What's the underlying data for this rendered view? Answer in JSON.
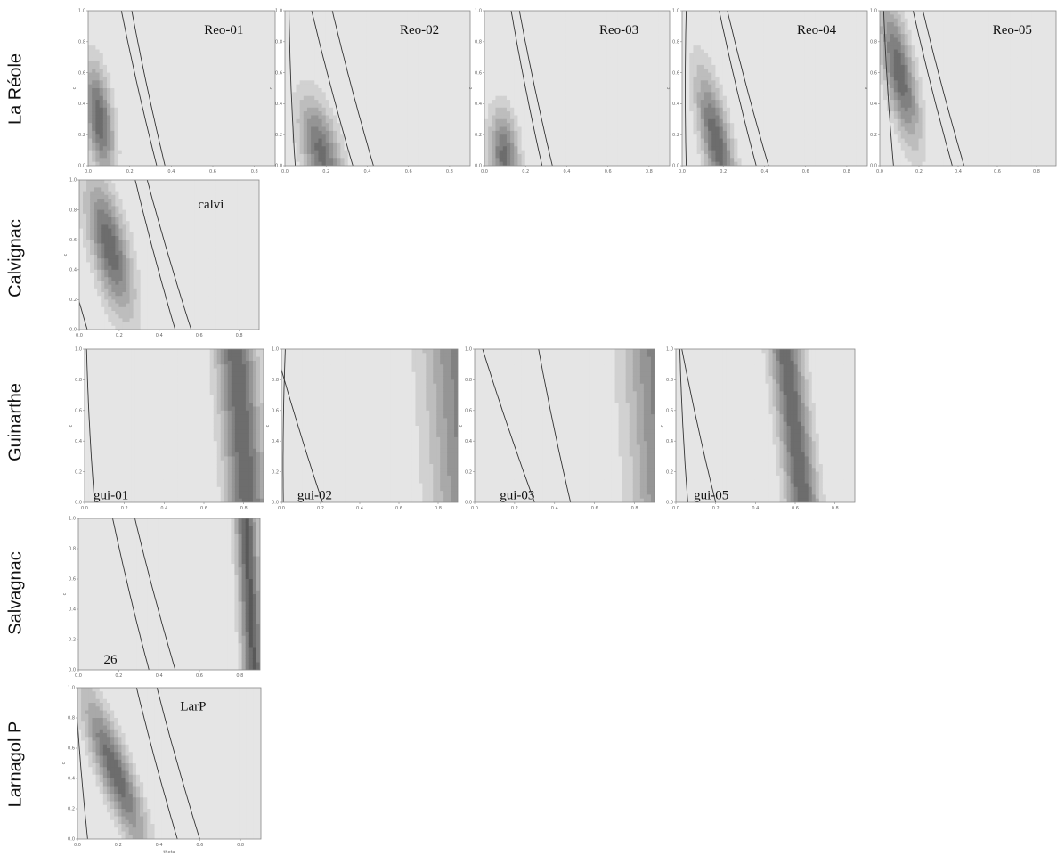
{
  "chart_data": {
    "type": "heatmap",
    "description_free": true,
    "xticks": [
      "0.0",
      "0.2",
      "0.4",
      "0.6",
      "0.8"
    ],
    "yticks": [
      "0.0",
      "0.2",
      "0.4",
      "0.6",
      "0.8",
      "1.0"
    ],
    "ylabel": "c",
    "xlabel_bottom": "theta",
    "x_range": [
      0,
      0.9
    ],
    "y_range": [
      0,
      1
    ],
    "rows": [
      {
        "label": "La Réole",
        "panels": [
          {
            "label": "Reo-01",
            "dark": {
              "x0": 0.08,
              "slope": -0.09,
              "w": 0.065,
              "yc": 0.3,
              "h": 0.35,
              "k": 0.85
            },
            "contours": [
              {
                "x0": 0.33,
                "slope": -0.19
              },
              {
                "x0": 0.37,
                "slope": -0.18
              }
            ]
          },
          {
            "label": "Reo-02",
            "dark": {
              "x0": 0.19,
              "slope": -0.16,
              "w": 0.09,
              "yc": 0.08,
              "h": 0.35,
              "k": 0.8
            },
            "contours": [
              {
                "x0": 0.05,
                "slope": -0.05
              },
              {
                "x0": 0.33,
                "slope": -0.22
              },
              {
                "x0": 0.43,
                "slope": -0.22
              }
            ]
          },
          {
            "label": "Reo-03",
            "dark": {
              "x0": 0.1,
              "slope": -0.05,
              "w": 0.07,
              "yc": 0.05,
              "h": 0.3,
              "k": 0.8
            },
            "contours": [
              {
                "x0": 0.28,
                "slope": -0.17
              },
              {
                "x0": 0.33,
                "slope": -0.18
              }
            ]
          },
          {
            "label": "Reo-04",
            "dark": {
              "x0": 0.19,
              "slope": -0.15,
              "w": 0.07,
              "yc": 0.15,
              "h": 0.45,
              "k": 0.85
            },
            "contours": [
              {
                "x0": 0.02,
                "slope": -0.02
              },
              {
                "x0": 0.36,
                "slope": -0.2
              },
              {
                "x0": 0.42,
                "slope": -0.22
              }
            ]
          },
          {
            "label": "Reo-05",
            "dark": {
              "x0": 0.19,
              "slope": -0.15,
              "w": 0.075,
              "yc": 0.6,
              "h": 0.45,
              "k": 0.85
            },
            "contours": [
              {
                "x0": 0.07,
                "slope": -0.07
              },
              {
                "x0": 0.37,
                "slope": -0.22
              },
              {
                "x0": 0.43,
                "slope": -0.23
              }
            ]
          }
        ]
      },
      {
        "label": "Calvignac",
        "panels": [
          {
            "label": "calvi",
            "dark": {
              "x0": 0.24,
              "slope": -0.16,
              "w": 0.09,
              "yc": 0.55,
              "h": 0.45,
              "k": 0.85
            },
            "contours": [
              {
                "x0": 0.04,
                "slope": -0.22
              },
              {
                "x0": 0.48,
                "slope": -0.22
              },
              {
                "x0": 0.56,
                "slope": -0.24
              }
            ]
          }
        ]
      },
      {
        "label": "Guinarthe",
        "panels": [
          {
            "label": "gui-01",
            "dark": {
              "x0": 0.82,
              "slope": -0.06,
              "w": 0.1,
              "yc": 0.5,
              "h": 9,
              "k": 0.85
            },
            "contours": [
              {
                "x0": 0.05,
                "slope": -0.06
              }
            ]
          },
          {
            "label": "gui-02",
            "dark": {
              "x0": 0.98,
              "slope": -0.05,
              "w": 0.2,
              "yc": 0.5,
              "h": 9,
              "k": 0.7
            },
            "contours": [
              {
                "x0": 0.21,
                "slope": -0.26
              },
              {
                "x0": 0.01,
                "slope": -0.01
              }
            ]
          },
          {
            "label": "gui-03",
            "dark": {
              "x0": 0.98,
              "slope": -0.05,
              "w": 0.18,
              "yc": 0.5,
              "h": 9,
              "k": 0.7
            },
            "contours": [
              {
                "x0": 0.3,
                "slope": -0.28
              },
              {
                "x0": 0.48,
                "slope": -0.18
              }
            ]
          },
          {
            "label": "gui-05",
            "dark": {
              "x0": 0.64,
              "slope": -0.09,
              "w": 0.08,
              "yc": 0.5,
              "h": 9,
              "k": 0.85
            },
            "contours": [
              {
                "x0": 0.2,
                "slope": -0.19
              },
              {
                "x0": 0.06,
                "slope": -0.06
              }
            ]
          }
        ]
      },
      {
        "label": "Salvagnac",
        "panels": [
          {
            "label": "26",
            "dark": {
              "x0": 0.87,
              "slope": -0.04,
              "w": 0.055,
              "yc": 0.5,
              "h": 9,
              "k": 0.9
            },
            "contours": [
              {
                "x0": 0.35,
                "slope": -0.2
              },
              {
                "x0": 0.48,
                "slope": -0.22
              }
            ]
          }
        ]
      },
      {
        "label": "Larnagol P",
        "panels": [
          {
            "label": "LarP",
            "dark": {
              "x0": 0.3,
              "slope": -0.26,
              "w": 0.08,
              "yc": 0.45,
              "h": 0.5,
              "k": 0.85
            },
            "contours": [
              {
                "x0": 0.05,
                "slope": -0.08
              },
              {
                "x0": 0.49,
                "slope": -0.22
              },
              {
                "x0": 0.6,
                "slope": -0.23
              }
            ]
          }
        ]
      }
    ]
  }
}
